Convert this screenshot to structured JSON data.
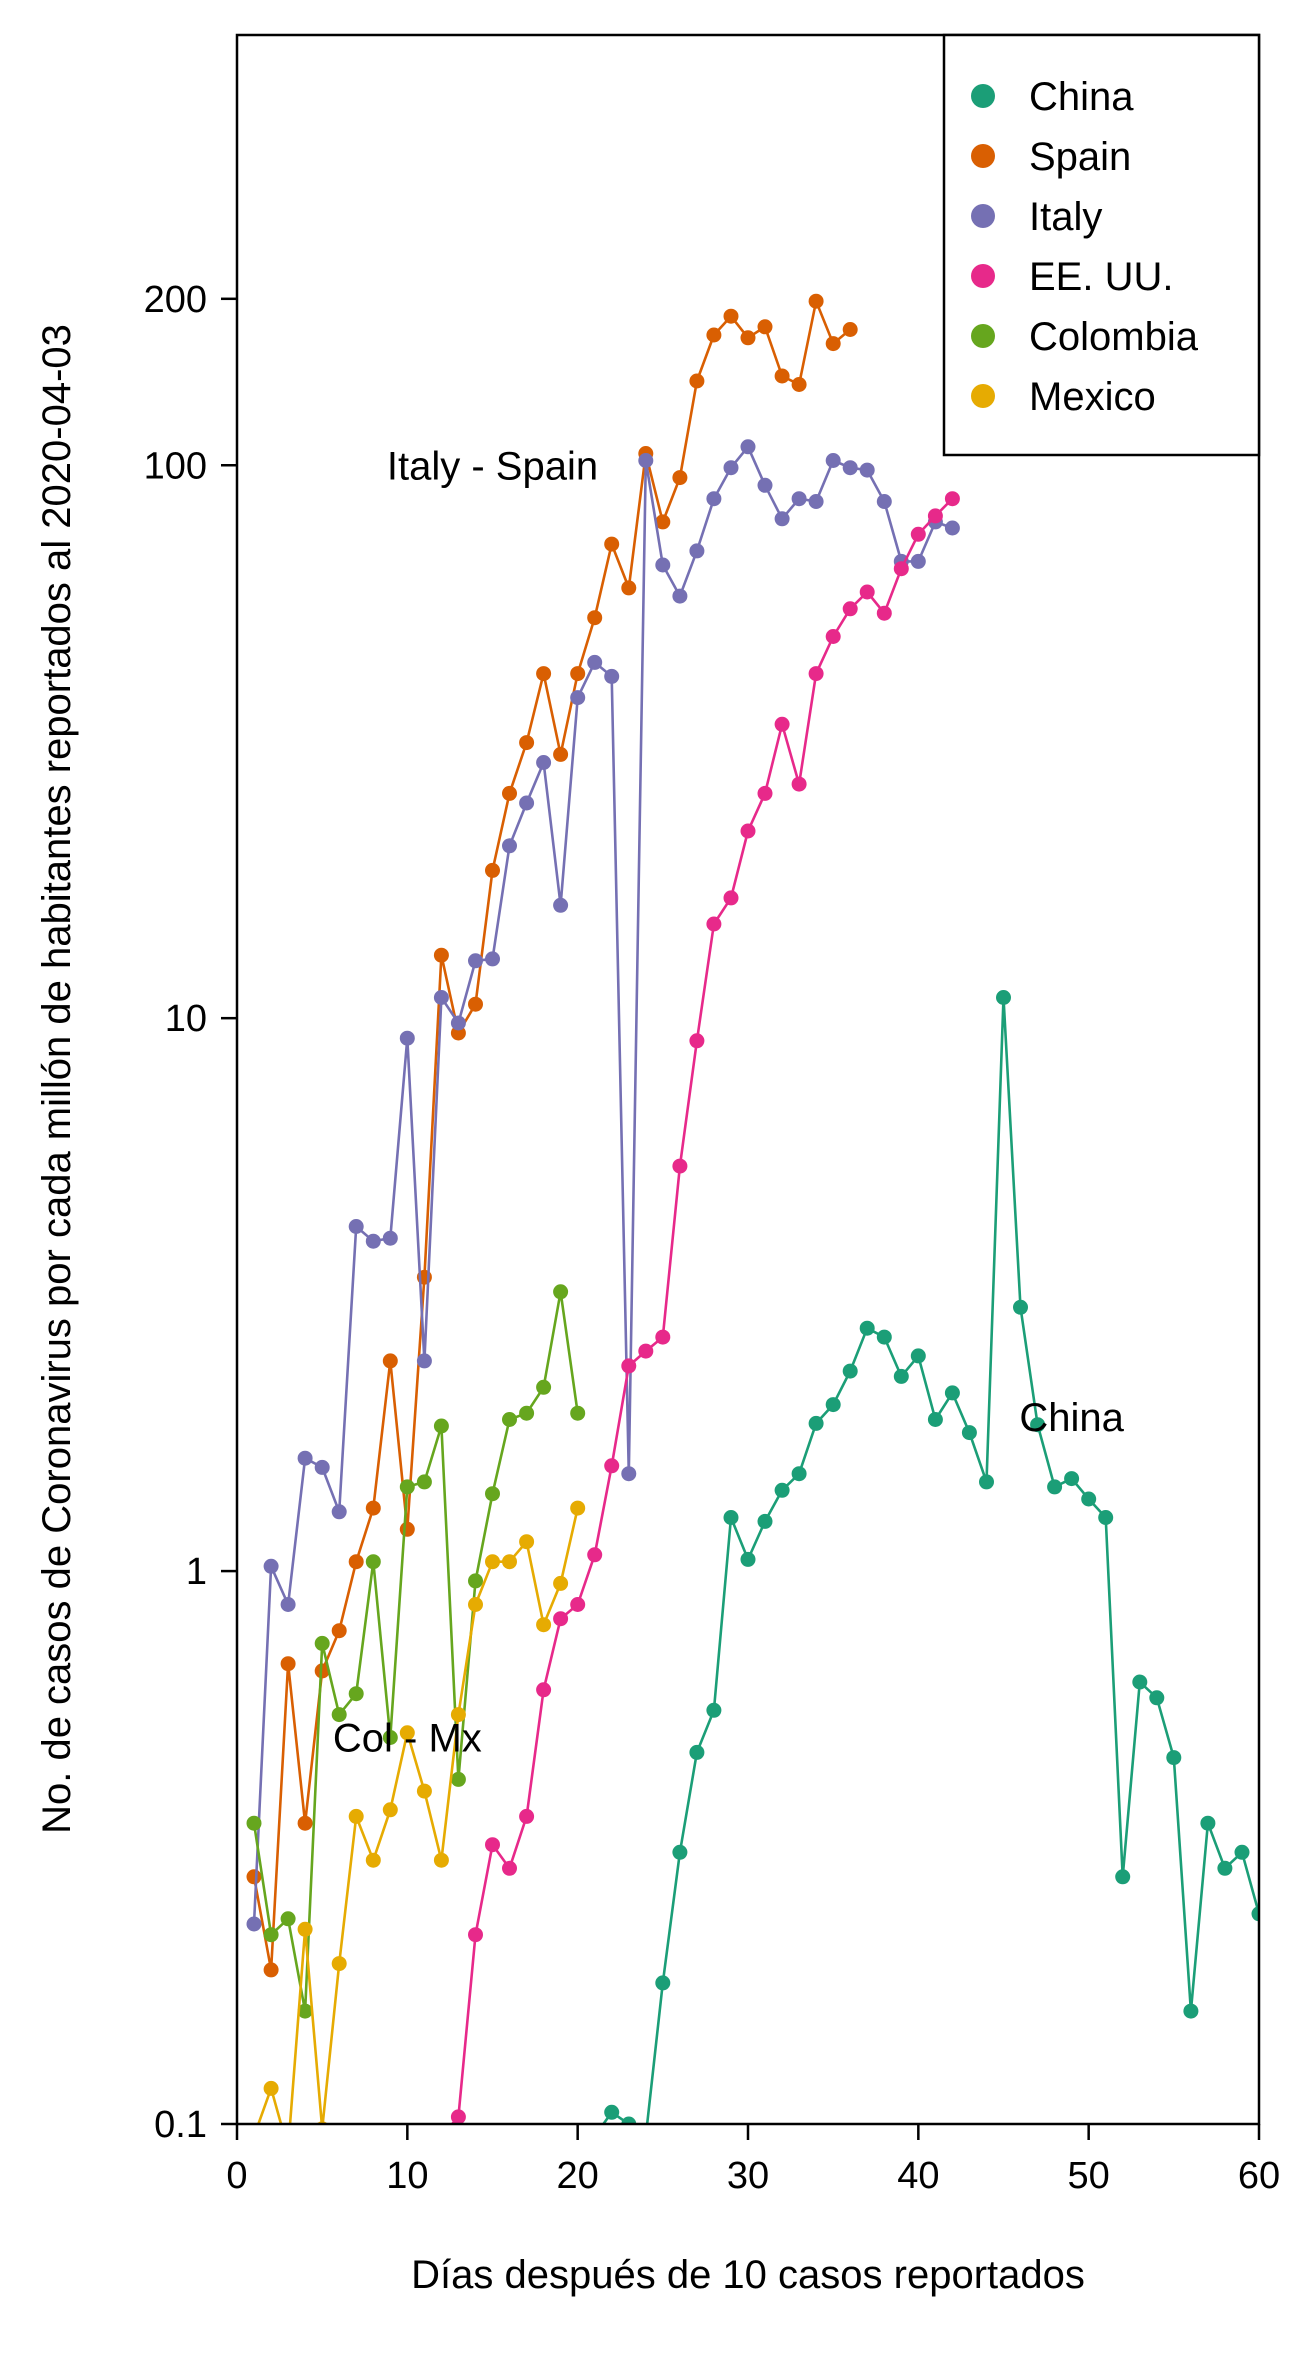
{
  "chart_data": {
    "type": "line",
    "xlabel": "Días después de 10 casos reportados",
    "ylabel": "No. de casos de Coronavirus por cada millón de habitantes reportados al 2020-04-03",
    "xlim": [
      0,
      60
    ],
    "ylim": [
      0.1,
      600
    ],
    "y_scale": "log",
    "x_ticks": [
      0,
      10,
      20,
      30,
      40,
      50,
      60
    ],
    "y_ticks": [
      0.1,
      1,
      10,
      100,
      200
    ],
    "y_tick_labels": [
      "0.1",
      "1",
      "10",
      "100",
      "200"
    ],
    "grid": false,
    "legend_position": "top-right",
    "annotations": [
      {
        "text": "Italy - Spain",
        "x": 15,
        "y": 100
      },
      {
        "text": "China",
        "x": 49,
        "y": 1.9
      },
      {
        "text": "Col - Mx",
        "x": 10,
        "y": 0.5
      }
    ],
    "series": [
      {
        "name": "China",
        "color": "#1b9e77",
        "points": [
          [
            21,
            0.095
          ],
          [
            22,
            0.105
          ],
          [
            23,
            0.1
          ],
          [
            24,
            0.095
          ],
          [
            25,
            0.18
          ],
          [
            26,
            0.31
          ],
          [
            27,
            0.47
          ],
          [
            28,
            0.56
          ],
          [
            29,
            1.25
          ],
          [
            30,
            1.05
          ],
          [
            31,
            1.23
          ],
          [
            32,
            1.4
          ],
          [
            33,
            1.5
          ],
          [
            34,
            1.85
          ],
          [
            35,
            2.0
          ],
          [
            36,
            2.3
          ],
          [
            37,
            2.75
          ],
          [
            38,
            2.65
          ],
          [
            39,
            2.25
          ],
          [
            40,
            2.45
          ],
          [
            41,
            1.88
          ],
          [
            42,
            2.1
          ],
          [
            43,
            1.78
          ],
          [
            44,
            1.45
          ],
          [
            45,
            10.9
          ],
          [
            46,
            3.0
          ],
          [
            47,
            1.84
          ],
          [
            48,
            1.42
          ],
          [
            49,
            1.47
          ],
          [
            50,
            1.35
          ],
          [
            51,
            1.25
          ],
          [
            52,
            0.28
          ],
          [
            53,
            0.63
          ],
          [
            54,
            0.59
          ],
          [
            55,
            0.46
          ],
          [
            56,
            0.16
          ],
          [
            57,
            0.35
          ],
          [
            58,
            0.29
          ],
          [
            59,
            0.31
          ],
          [
            60,
            0.24
          ]
        ]
      },
      {
        "name": "Spain",
        "color": "#d95f02",
        "points": [
          [
            1,
            0.28
          ],
          [
            2,
            0.19
          ],
          [
            3,
            0.68
          ],
          [
            4,
            0.35
          ],
          [
            5,
            0.66
          ],
          [
            6,
            0.78
          ],
          [
            7,
            1.04
          ],
          [
            8,
            1.3
          ],
          [
            9,
            2.4
          ],
          [
            10,
            1.19
          ],
          [
            11,
            3.4
          ],
          [
            12,
            13.0
          ],
          [
            13,
            9.4
          ],
          [
            14,
            10.6
          ],
          [
            15,
            18.5
          ],
          [
            16,
            25.5
          ],
          [
            17,
            31.5
          ],
          [
            18,
            42.0
          ],
          [
            19,
            30.0
          ],
          [
            20,
            42.0
          ],
          [
            21,
            53.0
          ],
          [
            22,
            72.0
          ],
          [
            23,
            60.0
          ],
          [
            24,
            105.0
          ],
          [
            25,
            79.0
          ],
          [
            26,
            95.0
          ],
          [
            27,
            142.0
          ],
          [
            28,
            172.0
          ],
          [
            29,
            186.0
          ],
          [
            30,
            170.0
          ],
          [
            31,
            178.0
          ],
          [
            32,
            145.0
          ],
          [
            33,
            140.0
          ],
          [
            34,
            198.0
          ],
          [
            35,
            166.0
          ],
          [
            36,
            176.0
          ]
        ]
      },
      {
        "name": "Italy",
        "color": "#7570b3",
        "points": [
          [
            1,
            0.23
          ],
          [
            2,
            1.02
          ],
          [
            3,
            0.87
          ],
          [
            4,
            1.6
          ],
          [
            5,
            1.54
          ],
          [
            6,
            1.28
          ],
          [
            7,
            4.2
          ],
          [
            8,
            3.95
          ],
          [
            9,
            4.0
          ],
          [
            10,
            9.2
          ],
          [
            11,
            2.4
          ],
          [
            12,
            10.9
          ],
          [
            13,
            9.8
          ],
          [
            14,
            12.7
          ],
          [
            15,
            12.8
          ],
          [
            16,
            20.5
          ],
          [
            17,
            24.5
          ],
          [
            18,
            29.0
          ],
          [
            19,
            16.0
          ],
          [
            20,
            38.0
          ],
          [
            21,
            44.0
          ],
          [
            22,
            41.5
          ],
          [
            23,
            1.5
          ],
          [
            24,
            102.0
          ],
          [
            25,
            66.0
          ],
          [
            26,
            58.0
          ],
          [
            27,
            70.0
          ],
          [
            28,
            87.0
          ],
          [
            29,
            99.0
          ],
          [
            30,
            108.0
          ],
          [
            31,
            92.0
          ],
          [
            32,
            80.0
          ],
          [
            33,
            87.0
          ],
          [
            34,
            86.0
          ],
          [
            35,
            102.0
          ],
          [
            36,
            99.0
          ],
          [
            37,
            98.0
          ],
          [
            38,
            86.0
          ],
          [
            39,
            67.0
          ],
          [
            40,
            67.0
          ],
          [
            41,
            79.0
          ],
          [
            42,
            77.0
          ]
        ]
      },
      {
        "name": "EE. UU.",
        "color": "#e7298a",
        "points": [
          [
            12,
            0.095
          ],
          [
            13,
            0.103
          ],
          [
            14,
            0.22
          ],
          [
            15,
            0.32
          ],
          [
            16,
            0.29
          ],
          [
            17,
            0.36
          ],
          [
            18,
            0.61
          ],
          [
            19,
            0.82
          ],
          [
            20,
            0.87
          ],
          [
            21,
            1.07
          ],
          [
            22,
            1.55
          ],
          [
            23,
            2.35
          ],
          [
            24,
            2.5
          ],
          [
            25,
            2.65
          ],
          [
            26,
            5.4
          ],
          [
            27,
            9.1
          ],
          [
            28,
            14.8
          ],
          [
            29,
            16.5
          ],
          [
            30,
            21.8
          ],
          [
            31,
            25.5
          ],
          [
            32,
            34.0
          ],
          [
            33,
            26.5
          ],
          [
            34,
            42.0
          ],
          [
            35,
            49.0
          ],
          [
            36,
            55.0
          ],
          [
            37,
            59.0
          ],
          [
            38,
            54.0
          ],
          [
            39,
            65.0
          ],
          [
            40,
            75.0
          ],
          [
            41,
            81.0
          ],
          [
            42,
            87.0
          ]
        ]
      },
      {
        "name": "Colombia",
        "color": "#66a61e",
        "points": [
          [
            1,
            0.35
          ],
          [
            2,
            0.22
          ],
          [
            3,
            0.235
          ],
          [
            4,
            0.16
          ],
          [
            5,
            0.74
          ],
          [
            6,
            0.55
          ],
          [
            7,
            0.6
          ],
          [
            8,
            1.04
          ],
          [
            9,
            0.5
          ],
          [
            10,
            1.42
          ],
          [
            11,
            1.45
          ],
          [
            12,
            1.83
          ],
          [
            13,
            0.42
          ],
          [
            14,
            0.96
          ],
          [
            15,
            1.38
          ],
          [
            16,
            1.88
          ],
          [
            17,
            1.93
          ],
          [
            18,
            2.15
          ],
          [
            19,
            3.2
          ],
          [
            20,
            1.93
          ]
        ]
      },
      {
        "name": "Mexico",
        "color": "#e6ab02",
        "points": [
          [
            1,
            0.095
          ],
          [
            2,
            0.116
          ],
          [
            3,
            0.09
          ],
          [
            4,
            0.225
          ],
          [
            5,
            0.098
          ],
          [
            6,
            0.195
          ],
          [
            7,
            0.36
          ],
          [
            8,
            0.3
          ],
          [
            9,
            0.37
          ],
          [
            10,
            0.51
          ],
          [
            11,
            0.4
          ],
          [
            12,
            0.3
          ],
          [
            13,
            0.55
          ],
          [
            14,
            0.87
          ],
          [
            15,
            1.04
          ],
          [
            16,
            1.04
          ],
          [
            17,
            1.13
          ],
          [
            18,
            0.8
          ],
          [
            19,
            0.95
          ],
          [
            20,
            1.3
          ]
        ]
      }
    ]
  }
}
